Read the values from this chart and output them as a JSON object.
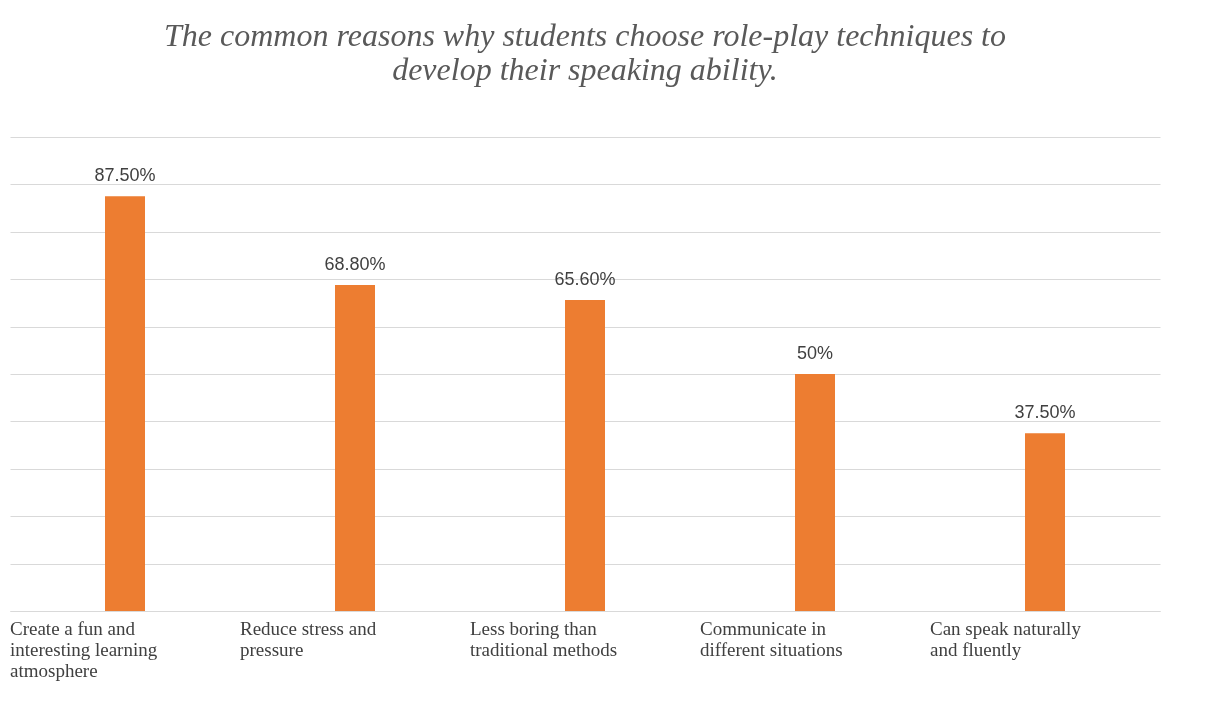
{
  "chart_data": {
    "type": "bar",
    "title": "The common reasons why students choose role-play techniques to develop their speaking ability.",
    "categories": [
      "Create a fun and interesting learning atmosphere",
      "Reduce stress and pressure",
      "Less boring than traditional methods",
      "Communicate in different situations",
      "Can speak naturally and fluently"
    ],
    "values": [
      87.5,
      68.8,
      65.6,
      50,
      37.5
    ],
    "value_labels": [
      "87.50%",
      "68.80%",
      "65.60%",
      "50%",
      "37.50%"
    ],
    "color": "#ed7d31",
    "ylim": [
      0,
      100
    ],
    "yticks": [
      {
        "value": 0,
        "label": null
      },
      {
        "value": 10,
        "label": null
      },
      {
        "value": 20,
        "label": null
      },
      {
        "value": 30,
        "label": null
      },
      {
        "value": 40,
        "label": null
      },
      {
        "value": 50,
        "label": null
      },
      {
        "value": 60,
        "label": null
      },
      {
        "value": 70,
        "label": null
      },
      {
        "value": 80,
        "label": null
      },
      {
        "value": 90,
        "label": null
      },
      {
        "value": 100,
        "label": null
      }
    ],
    "grid": "y",
    "tick_labels": "x"
  }
}
